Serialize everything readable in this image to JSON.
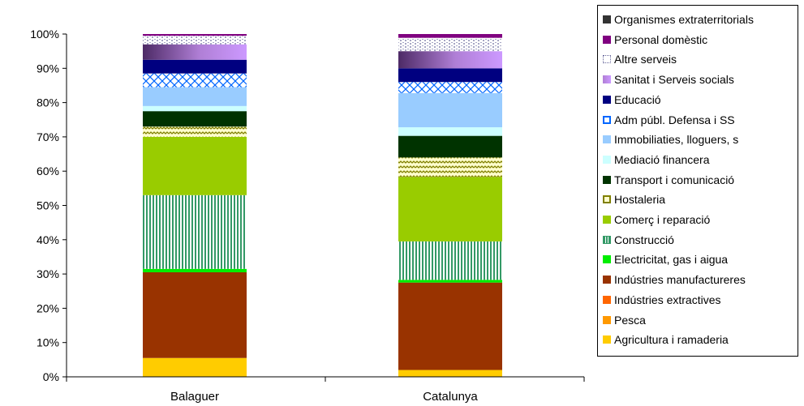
{
  "chart_data": {
    "type": "bar",
    "stacked": true,
    "percent": true,
    "categories": [
      "Balaguer",
      "Catalunya"
    ],
    "ylim": [
      0,
      100
    ],
    "y_ticks": [
      "0%",
      "10%",
      "20%",
      "30%",
      "40%",
      "50%",
      "60%",
      "70%",
      "80%",
      "90%",
      "100%"
    ],
    "legend_position": "right",
    "series": [
      {
        "name": "Agricultura i ramaderia",
        "values": [
          5.5,
          2.0
        ],
        "color": "#ffcc00",
        "pattern": "solid"
      },
      {
        "name": "Pesca",
        "values": [
          0.0,
          0.0
        ],
        "color": "#ff9900",
        "pattern": "solid"
      },
      {
        "name": "Indústries extractives",
        "values": [
          0.0,
          0.0
        ],
        "color": "#ff6600",
        "pattern": "solid"
      },
      {
        "name": "Indústries manufactureres",
        "values": [
          25.0,
          25.5
        ],
        "color": "#993300",
        "pattern": "solid"
      },
      {
        "name": "Electricitat, gas i aigua",
        "values": [
          1.0,
          0.8
        ],
        "color": "#00ee00",
        "pattern": "solid"
      },
      {
        "name": "Construcció",
        "values": [
          21.5,
          11.2
        ],
        "color": "#339966",
        "pattern": "vlines"
      },
      {
        "name": "Comerç i reparació",
        "values": [
          17.0,
          18.8
        ],
        "color": "#99cc00",
        "pattern": "solid"
      },
      {
        "name": "Hostaleria",
        "values": [
          3.0,
          5.7
        ],
        "color": "#808000",
        "pattern": "zigzag"
      },
      {
        "name": "Transport i comunicació",
        "values": [
          4.5,
          6.3
        ],
        "color": "#003300",
        "pattern": "solid"
      },
      {
        "name": "Mediació financera",
        "values": [
          1.5,
          2.5
        ],
        "color": "#ccffff",
        "pattern": "solid"
      },
      {
        "name": "Immobiliaties, lloguers, s",
        "values": [
          5.5,
          10.0
        ],
        "color": "#99ccff",
        "pattern": "solid"
      },
      {
        "name": "Adm públ. Defensa i SS",
        "values": [
          4.0,
          3.2
        ],
        "color": "#0066ff",
        "pattern": "cross"
      },
      {
        "name": "Educació",
        "values": [
          4.0,
          4.0
        ],
        "color": "#000080",
        "pattern": "solid"
      },
      {
        "name": "Sanitat i Serveis socials",
        "values": [
          4.5,
          5.0
        ],
        "color": "#cc99ff",
        "pattern": "gradient"
      },
      {
        "name": "Altre serveis",
        "values": [
          2.5,
          3.9
        ],
        "color": "#666699",
        "pattern": "dots"
      },
      {
        "name": "Personal domèstic",
        "values": [
          0.5,
          1.1
        ],
        "color": "#800080",
        "pattern": "solid"
      },
      {
        "name": "Organismes extraterritorials",
        "values": [
          0.0,
          0.0
        ],
        "color": "#333333",
        "pattern": "solid"
      }
    ]
  }
}
